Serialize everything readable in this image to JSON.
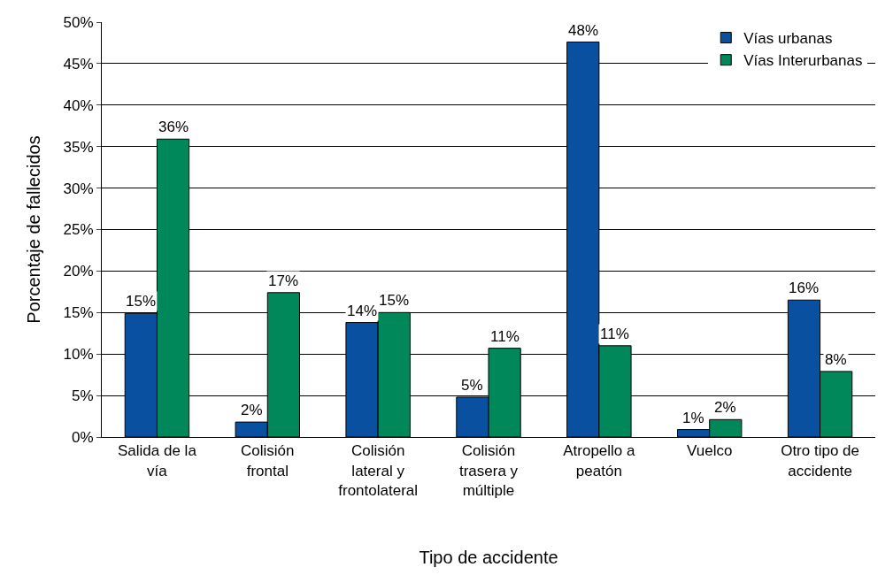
{
  "chart_data": {
    "type": "bar",
    "xlabel": "Tipo de accidente",
    "ylabel": "Porcentaje de fallecidos",
    "categories": [
      "Salida de la vía",
      "Colisión frontal",
      "Colisión lateral y frontolateral",
      "Colisión trasera y múltiple",
      "Atropello a peatón",
      "Vuelco",
      "Otro tipo de accidente"
    ],
    "series": [
      {
        "name": "Vías urbanas",
        "color": "#0a50a0",
        "values": [
          14.9,
          1.8,
          13.8,
          4.8,
          47.6,
          0.9,
          16.5
        ],
        "value_labels": [
          "15%",
          "2%",
          "14%",
          "5%",
          "48%",
          "1%",
          "16%"
        ]
      },
      {
        "name": "Vías Interurbanas",
        "color": "#00875a",
        "values": [
          35.9,
          17.4,
          15.0,
          10.7,
          11.0,
          2.1,
          7.9
        ],
        "value_labels": [
          "36%",
          "17%",
          "15%",
          "11%",
          "11%",
          "2%",
          "8%"
        ]
      }
    ],
    "ylim": [
      0,
      50
    ],
    "yticks": [
      {
        "value": 0,
        "label": "0%"
      },
      {
        "value": 5,
        "label": "5%"
      },
      {
        "value": 10,
        "label": "10%"
      },
      {
        "value": 15,
        "label": "15%"
      },
      {
        "value": 20,
        "label": "20%"
      },
      {
        "value": 25,
        "label": "25%"
      },
      {
        "value": 30,
        "label": "30%"
      },
      {
        "value": 35,
        "label": "35%"
      },
      {
        "value": 40,
        "label": "40%"
      },
      {
        "value": 45,
        "label": "45%"
      },
      {
        "value": 50,
        "label": "50%"
      }
    ],
    "grid": "y",
    "legend": "top right"
  }
}
